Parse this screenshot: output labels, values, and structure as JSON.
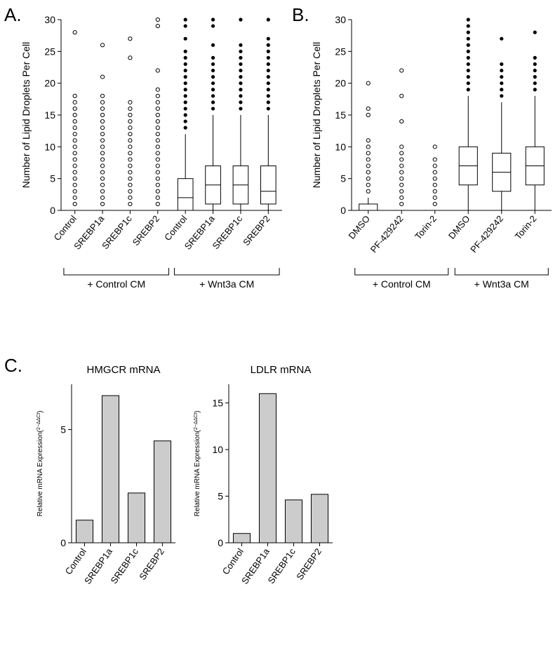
{
  "colors": {
    "background": "#ffffff",
    "axis": "#000000",
    "text": "#000000",
    "open_marker_stroke": "#000000",
    "filled_marker_fill": "#000000",
    "box_stroke": "#000000",
    "box_fill": "#ffffff",
    "bar_stroke": "#000000",
    "bar_fill": "#cccccc"
  },
  "labels": {
    "panel_a": "A.",
    "panel_b": "B.",
    "panel_c": "C."
  },
  "panel_a": {
    "type": "boxplot_with_outliers",
    "ylabel": "Number of Lipid Droplets Per Cell",
    "ylim": [
      0,
      30
    ],
    "ytick_step": 5,
    "yticks": [
      0,
      5,
      10,
      15,
      20,
      25,
      30
    ],
    "group_labels": [
      "+ Control CM",
      "+ Wnt3a CM"
    ],
    "categories": [
      "Control",
      "SREBP1a",
      "SREBP1c",
      "SREBP2",
      "Control",
      "SREBP1a",
      "SREBP1c",
      "SREBP2"
    ],
    "boxes": [
      {
        "visible": false
      },
      {
        "visible": false
      },
      {
        "visible": false
      },
      {
        "visible": false
      },
      {
        "visible": true,
        "whisker_low": 0,
        "q1": 0,
        "median": 2,
        "q3": 5,
        "whisker_high": 12
      },
      {
        "visible": true,
        "whisker_low": 0,
        "q1": 1,
        "median": 4,
        "q3": 7,
        "whisker_high": 15
      },
      {
        "visible": true,
        "whisker_low": 0,
        "q1": 1,
        "median": 4,
        "q3": 7,
        "whisker_high": 15
      },
      {
        "visible": true,
        "whisker_low": 0,
        "q1": 1,
        "median": 3,
        "q3": 7,
        "whisker_high": 15
      }
    ],
    "open_outliers": [
      {
        "series": 0,
        "values": [
          1,
          2,
          3,
          4,
          5,
          6,
          7,
          8,
          9,
          10,
          11,
          12,
          13,
          14,
          15,
          16,
          17,
          18,
          28
        ]
      },
      {
        "series": 1,
        "values": [
          1,
          2,
          3,
          4,
          5,
          6,
          7,
          8,
          9,
          10,
          11,
          12,
          13,
          14,
          15,
          16,
          17,
          18,
          21,
          26
        ]
      },
      {
        "series": 2,
        "values": [
          1,
          2,
          3,
          4,
          5,
          6,
          7,
          8,
          9,
          10,
          11,
          12,
          13,
          14,
          15,
          16,
          17,
          24,
          27
        ]
      },
      {
        "series": 3,
        "values": [
          1,
          2,
          3,
          4,
          5,
          6,
          7,
          8,
          9,
          10,
          11,
          12,
          13,
          14,
          15,
          16,
          17,
          18,
          19,
          22,
          29,
          30
        ]
      },
      {
        "series": 4,
        "values": []
      },
      {
        "series": 5,
        "values": []
      },
      {
        "series": 6,
        "values": []
      },
      {
        "series": 7,
        "values": []
      }
    ],
    "filled_outliers": [
      {
        "series": 0,
        "values": []
      },
      {
        "series": 1,
        "values": []
      },
      {
        "series": 2,
        "values": []
      },
      {
        "series": 3,
        "values": []
      },
      {
        "series": 4,
        "values": [
          13,
          14,
          15,
          16,
          17,
          18,
          19,
          20,
          21,
          22,
          23,
          24,
          25,
          27,
          29,
          30
        ]
      },
      {
        "series": 5,
        "values": [
          16,
          17,
          18,
          19,
          20,
          21,
          22,
          23,
          24,
          26,
          29,
          30
        ]
      },
      {
        "series": 6,
        "values": [
          16,
          17,
          18,
          19,
          20,
          21,
          22,
          23,
          24,
          25,
          26,
          30
        ]
      },
      {
        "series": 7,
        "values": [
          16,
          17,
          18,
          19,
          20,
          21,
          22,
          23,
          24,
          25,
          26,
          27,
          30
        ]
      }
    ],
    "label_fontsize": 14,
    "tick_fontsize": 14,
    "category_fontsize": 13,
    "group_fontsize": 14,
    "box_width": 0.55,
    "marker_radius": 2.6,
    "line_width": 1
  },
  "panel_b": {
    "type": "boxplot_with_outliers",
    "ylabel": "Number of Lipid Droplets Per Cell",
    "ylim": [
      0,
      30
    ],
    "ytick_step": 5,
    "yticks": [
      0,
      5,
      10,
      15,
      20,
      25,
      30
    ],
    "group_labels": [
      "+ Control CM",
      "+ Wnt3a CM"
    ],
    "categories": [
      "DMSO",
      "PF-429242",
      "Torin-2",
      "DMSO",
      "PF-429242",
      "Torin-2"
    ],
    "boxes": [
      {
        "visible": true,
        "whisker_low": 0,
        "q1": 0,
        "median": 0,
        "q3": 1,
        "whisker_high": 2
      },
      {
        "visible": false
      },
      {
        "visible": false
      },
      {
        "visible": true,
        "whisker_low": 0,
        "q1": 4,
        "median": 7,
        "q3": 10,
        "whisker_high": 18
      },
      {
        "visible": true,
        "whisker_low": 0,
        "q1": 3,
        "median": 6,
        "q3": 9,
        "whisker_high": 17
      },
      {
        "visible": true,
        "whisker_low": 0,
        "q1": 4,
        "median": 7,
        "q3": 10,
        "whisker_high": 18
      }
    ],
    "open_outliers": [
      {
        "series": 0,
        "values": [
          3,
          4,
          5,
          6,
          7,
          8,
          9,
          10,
          11,
          15,
          16,
          20
        ]
      },
      {
        "series": 1,
        "values": [
          1,
          2,
          3,
          4,
          5,
          6,
          7,
          8,
          9,
          10,
          14,
          18,
          22
        ]
      },
      {
        "series": 2,
        "values": [
          1,
          2,
          3,
          4,
          5,
          6,
          7,
          8,
          10
        ]
      },
      {
        "series": 3,
        "values": []
      },
      {
        "series": 4,
        "values": []
      },
      {
        "series": 5,
        "values": []
      }
    ],
    "filled_outliers": [
      {
        "series": 0,
        "values": []
      },
      {
        "series": 1,
        "values": []
      },
      {
        "series": 2,
        "values": []
      },
      {
        "series": 3,
        "values": [
          19,
          20,
          21,
          22,
          23,
          24,
          25,
          26,
          27,
          28,
          29,
          30
        ]
      },
      {
        "series": 4,
        "values": [
          18,
          19,
          20,
          21,
          22,
          23,
          27
        ]
      },
      {
        "series": 5,
        "values": [
          19,
          20,
          21,
          22,
          23,
          24,
          28
        ]
      }
    ],
    "label_fontsize": 14,
    "tick_fontsize": 14,
    "category_fontsize": 13,
    "group_fontsize": 14,
    "box_width": 0.55,
    "marker_radius": 2.6,
    "line_width": 1
  },
  "panel_c": {
    "type": "bar",
    "ylabel": "Relative mRNA Expression(",
    "ylabel_suffix_super": "2−ΔΔCt",
    "ylabel_suffix_close": ")",
    "charts": [
      {
        "title": "HMGCR mRNA",
        "categories": [
          "Control",
          "SREBP1a",
          "SREBP1c",
          "SREBP2"
        ],
        "values": [
          1.0,
          6.5,
          2.2,
          4.5
        ],
        "ylim": [
          0,
          7
        ],
        "yticks": [
          0,
          5
        ],
        "bar_width": 0.65
      },
      {
        "title": "LDLR mRNA",
        "categories": [
          "Control",
          "SREBP1a",
          "SREBP1c",
          "SREBP2"
        ],
        "values": [
          1.0,
          16.0,
          4.6,
          5.2
        ],
        "ylim": [
          0,
          17
        ],
        "yticks": [
          0,
          5,
          10,
          15
        ],
        "bar_width": 0.65
      }
    ],
    "label_fontsize": 10,
    "tick_fontsize": 14,
    "category_fontsize": 13,
    "title_fontsize": 15,
    "line_width": 1
  }
}
